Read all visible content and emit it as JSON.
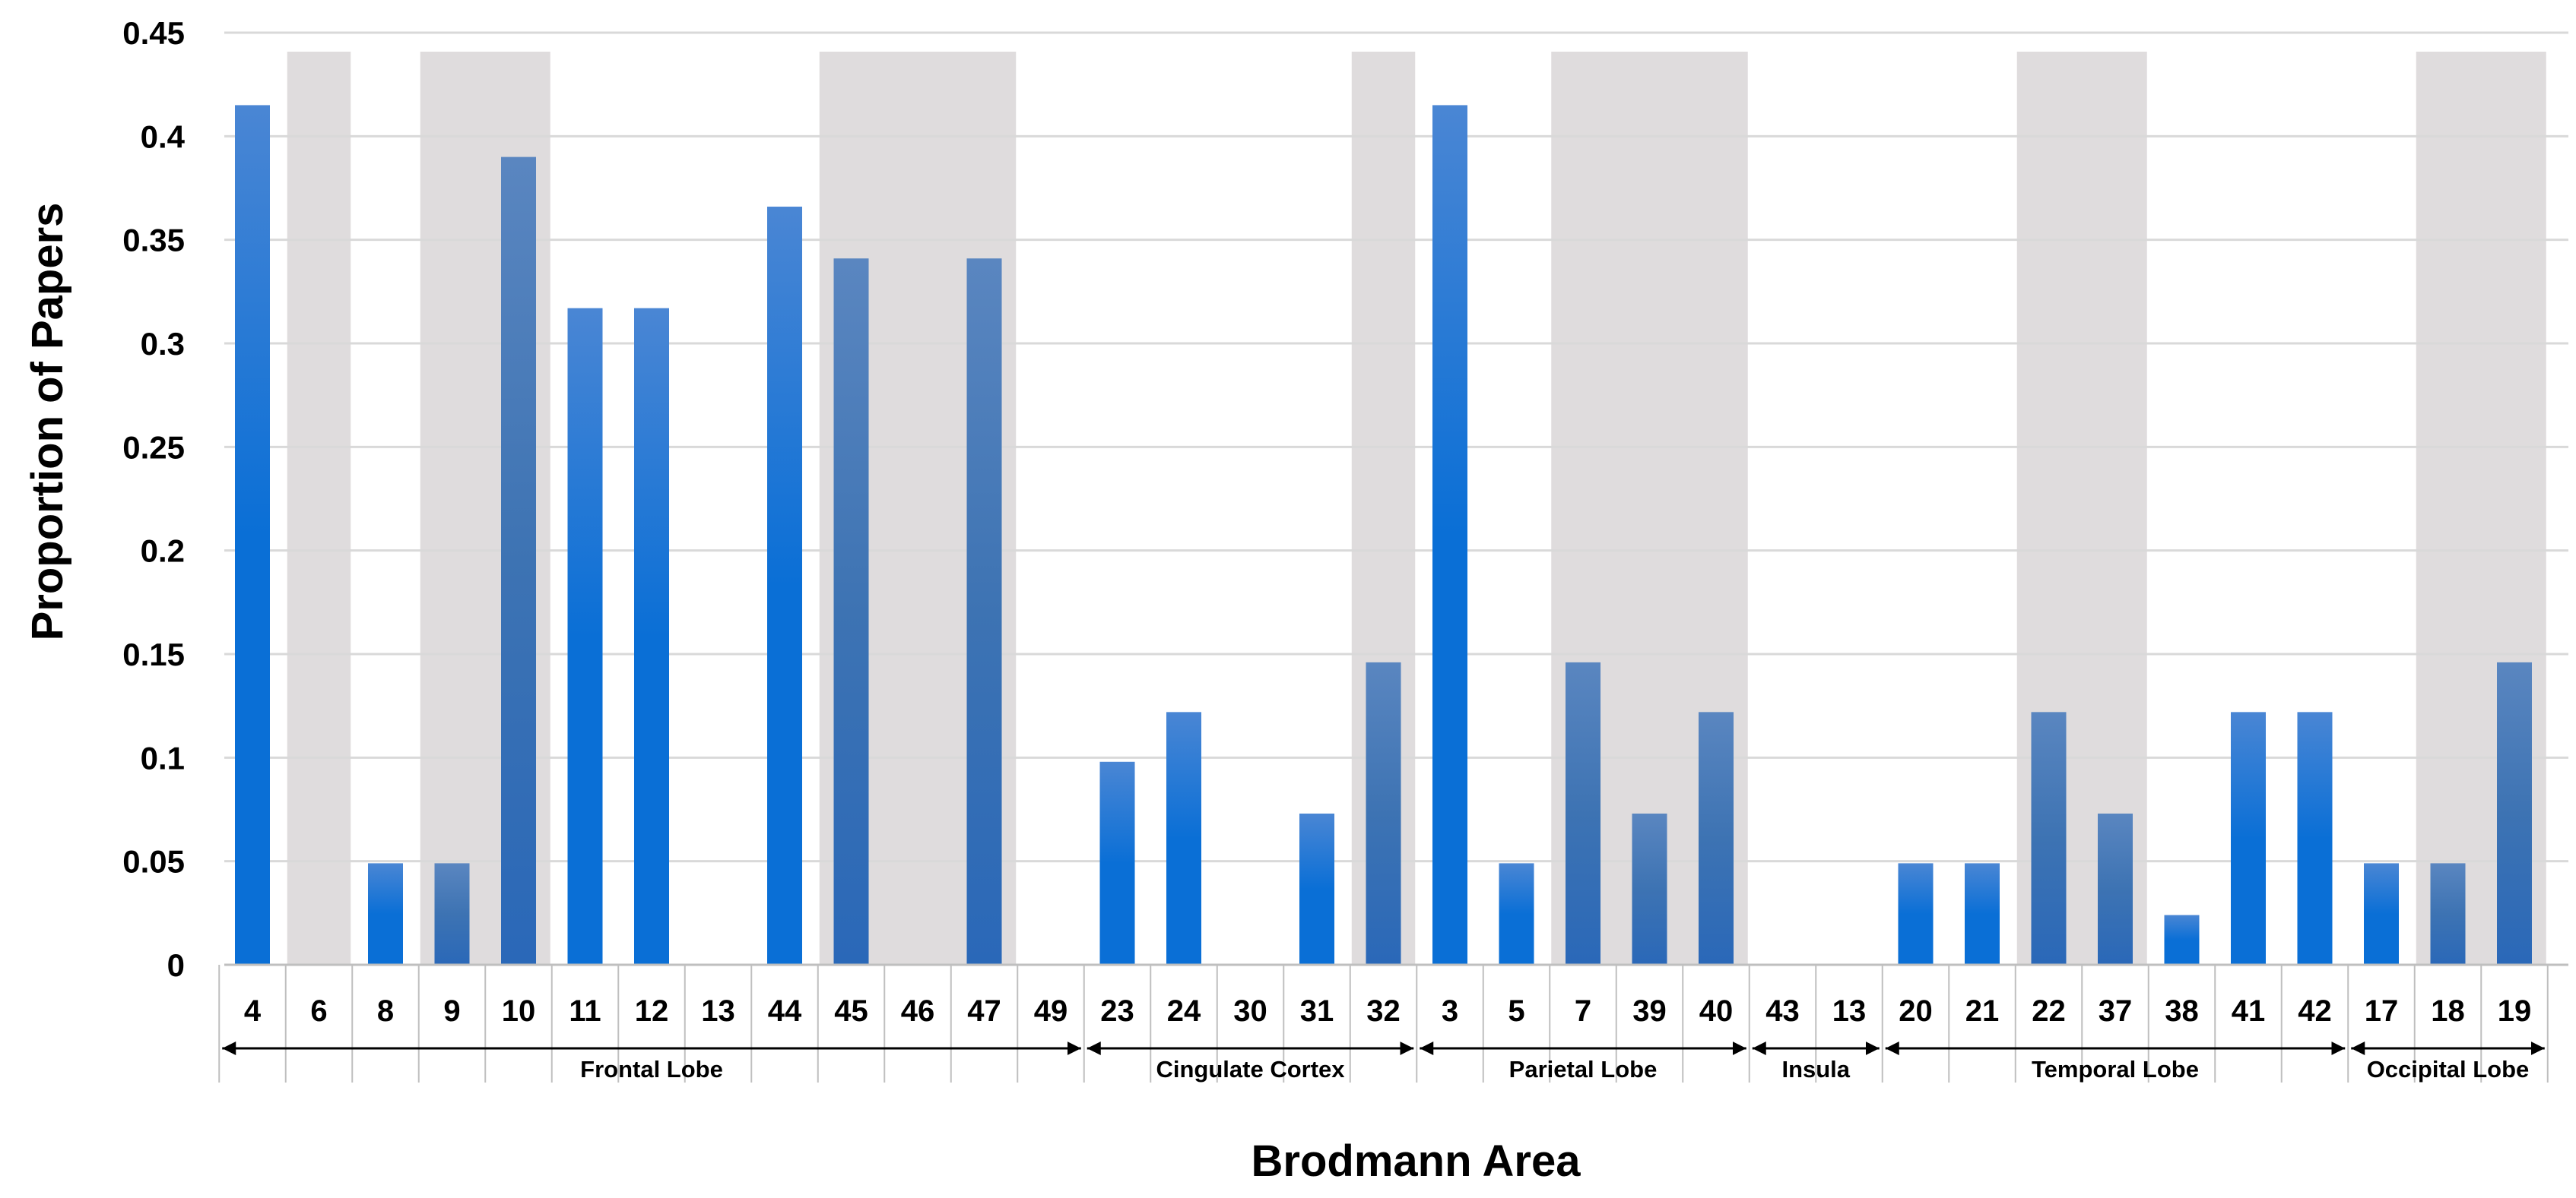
{
  "chart_data": {
    "type": "bar",
    "title": "",
    "xlabel": "Brodmann Area",
    "ylabel": "Proportion of Papers",
    "ylim": [
      0,
      0.45
    ],
    "yticks": [
      "0",
      "0.05",
      "0.1",
      "0.15",
      "0.2",
      "0.25",
      "0.3",
      "0.35",
      "0.4",
      "0.45"
    ],
    "grid": true,
    "legend": "none",
    "colors": {
      "bar_light": "#0a6fd6",
      "bar_dark": "#3d73b3",
      "shade": "#dfdcdd",
      "grid": "#d9d9d9"
    },
    "categories": [
      "4",
      "6",
      "8",
      "9",
      "10",
      "11",
      "12",
      "13",
      "44",
      "45",
      "46",
      "47",
      "49",
      "23",
      "24",
      "30",
      "31",
      "32",
      "3",
      "5",
      "7",
      "39",
      "40",
      "43",
      "13",
      "20",
      "21",
      "22",
      "37",
      "38",
      "41",
      "42",
      "17",
      "18",
      "19"
    ],
    "values": [
      0.415,
      0,
      0.049,
      0.049,
      0.39,
      0.317,
      0.317,
      0,
      0.366,
      0.341,
      0,
      0.341,
      0,
      0.098,
      0.122,
      0,
      0.073,
      0.146,
      0.415,
      0.049,
      0.146,
      0.073,
      0.122,
      0,
      0,
      0.049,
      0.049,
      0.122,
      0.073,
      0.024,
      0.122,
      0.122,
      0.049,
      0.049,
      0.146
    ],
    "shaded": [
      false,
      true,
      false,
      true,
      true,
      false,
      false,
      false,
      false,
      true,
      true,
      true,
      false,
      false,
      false,
      false,
      false,
      true,
      false,
      false,
      true,
      true,
      true,
      false,
      false,
      false,
      false,
      true,
      true,
      false,
      false,
      false,
      false,
      true,
      true
    ],
    "groups": [
      {
        "name": "Frontal Lobe",
        "start": 0,
        "end": 12
      },
      {
        "name": "Cingulate Cortex",
        "start": 13,
        "end": 17
      },
      {
        "name": "Parietal Lobe",
        "start": 18,
        "end": 22
      },
      {
        "name": "Insula",
        "start": 23,
        "end": 24
      },
      {
        "name": "Temporal Lobe",
        "start": 25,
        "end": 31
      },
      {
        "name": "Occipital Lobe",
        "start": 32,
        "end": 34
      }
    ]
  }
}
